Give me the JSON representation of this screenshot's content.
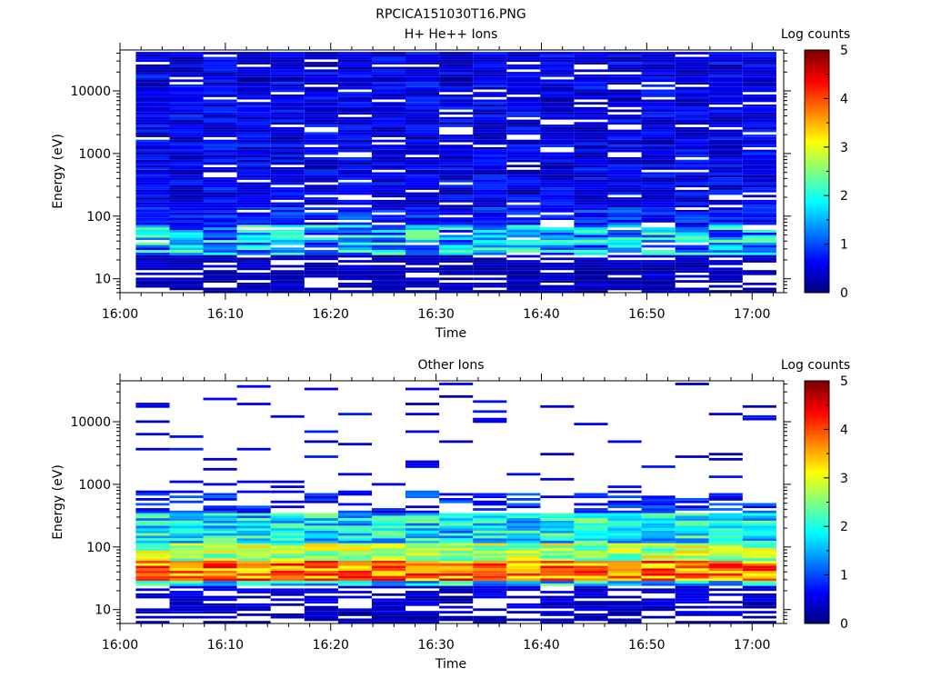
{
  "figure_title": "RPCICA151030T16.PNG",
  "colors": {
    "axis": "#000000",
    "background": "#ffffff",
    "colormap": "jet"
  },
  "chart_data": [
    {
      "type": "heatmap",
      "title": "H+ He++ Ions",
      "xlabel": "Time",
      "ylabel": "Energy (eV)",
      "x_ticks": [
        "16:00",
        "16:10",
        "16:20",
        "16:30",
        "16:40",
        "16:50",
        "17:00"
      ],
      "y_ticks": [
        "10",
        "100",
        "1000",
        "10000"
      ],
      "y_scale": "log",
      "ylim": [
        6,
        45000
      ],
      "xlim": [
        "16:00",
        "17:03"
      ],
      "colorbar": {
        "label": "Log counts",
        "ticks": [
          "0",
          "1",
          "2",
          "3",
          "4",
          "5"
        ],
        "range": [
          0,
          5
        ]
      },
      "time_columns": 19,
      "time_start": "16:00",
      "time_step_minutes": 3.2,
      "first_column_offset_minutes": 1.5,
      "energy_min_ev": 6,
      "energy_max_ev": 42000,
      "energy_bins": 96,
      "profile_description": "mostly low counts (0.2-0.8) across all energies with a brighter band near 30-60 eV (up to ~2.5)"
    },
    {
      "type": "heatmap",
      "title": "Other Ions",
      "xlabel": "Time",
      "ylabel": "Energy (eV)",
      "x_ticks": [
        "16:00",
        "16:10",
        "16:20",
        "16:30",
        "16:40",
        "16:50",
        "17:00"
      ],
      "y_ticks": [
        "10",
        "100",
        "1000",
        "10000"
      ],
      "y_scale": "log",
      "ylim": [
        6,
        45000
      ],
      "xlim": [
        "16:00",
        "17:03"
      ],
      "colorbar": {
        "label": "Log counts",
        "ticks": [
          "0",
          "1",
          "2",
          "3",
          "4",
          "5"
        ],
        "range": [
          0,
          5
        ]
      },
      "time_columns": 19,
      "time_start": "16:00",
      "time_step_minutes": 3.2,
      "first_column_offset_minutes": 1.5,
      "energy_min_ev": 6,
      "energy_max_ev": 42000,
      "energy_bins": 96,
      "profile_description": "intense band 30-60 eV (3.5-4.5), 100-300 eV medium (2-3), sparse weak counts above 1000 eV"
    }
  ]
}
